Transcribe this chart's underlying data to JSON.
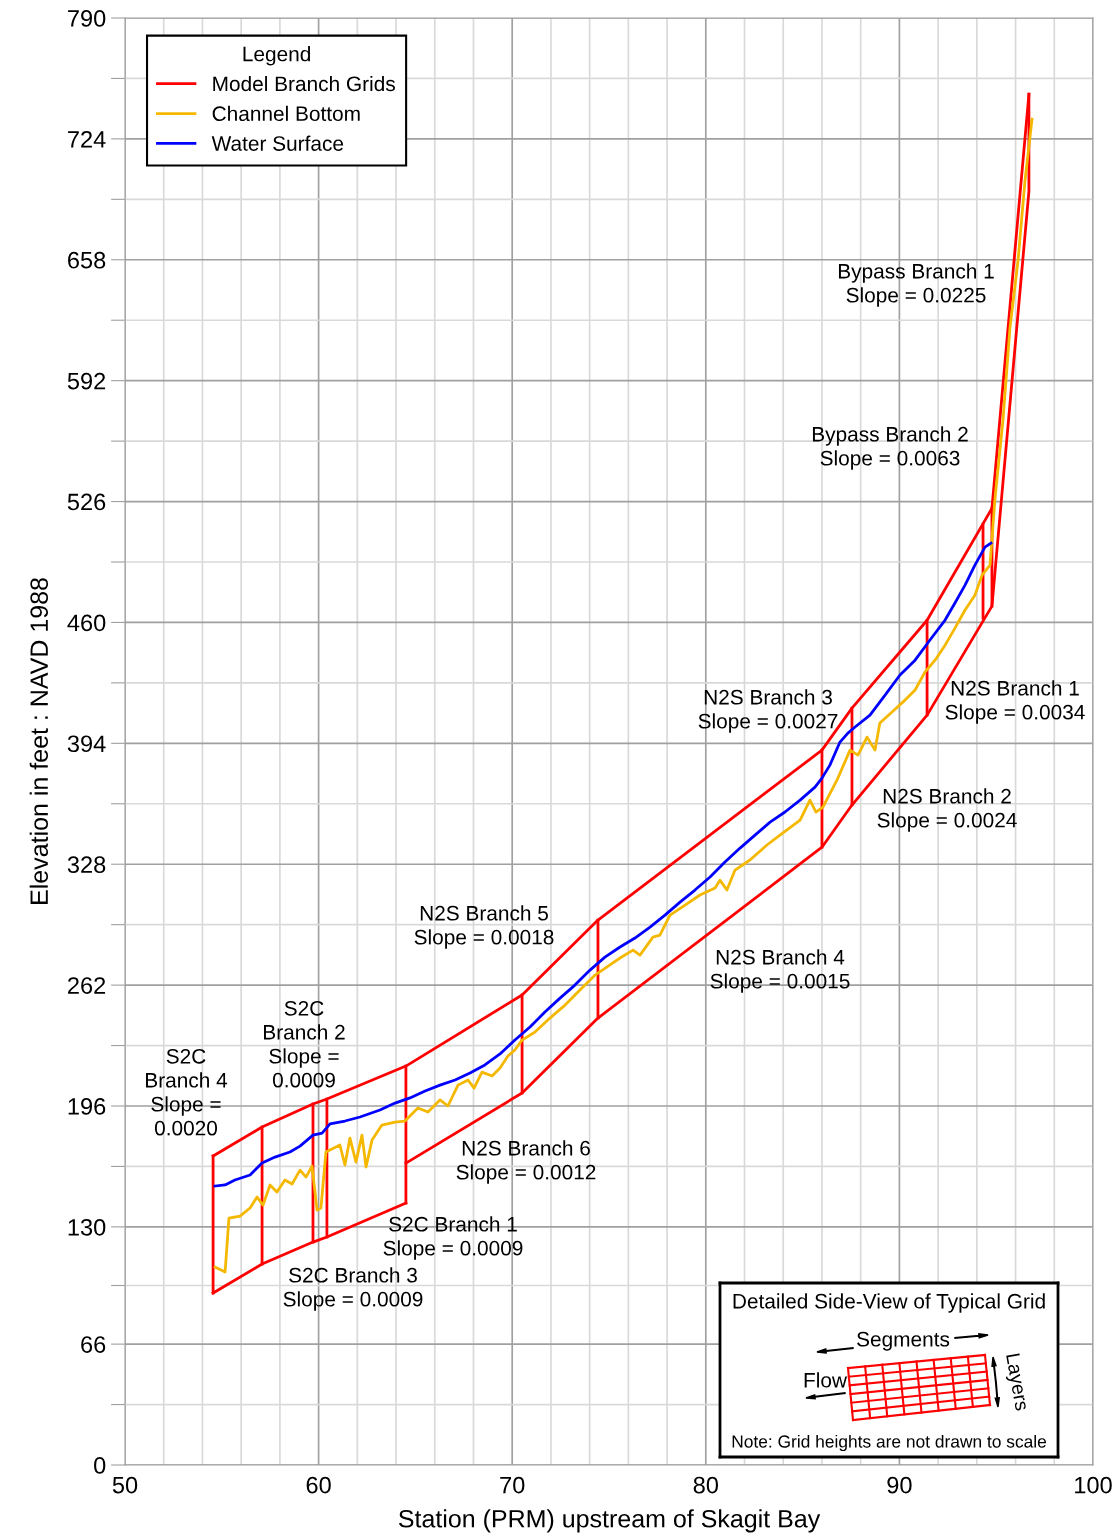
{
  "chart_data": {
    "type": "line",
    "xlabel": "Station (PRM) upstream of Skagit Bay",
    "ylabel": "Elevation in feet : NAVD 1988",
    "legend_title": "Legend",
    "legend": "top left",
    "grid": true,
    "line_style": "solid",
    "marker": "none",
    "xlim": [
      50,
      100
    ],
    "ylim": [
      0,
      790
    ],
    "xticks": [
      50,
      {
        "value": 52,
        "label": null
      },
      {
        "value": 54,
        "label": null
      },
      {
        "value": 56,
        "label": null
      },
      {
        "value": 58,
        "label": null
      },
      60,
      {
        "value": 62,
        "label": null
      },
      {
        "value": 64,
        "label": null
      },
      {
        "value": 66,
        "label": null
      },
      {
        "value": 68,
        "label": null
      },
      70,
      {
        "value": 72,
        "label": null
      },
      {
        "value": 74,
        "label": null
      },
      {
        "value": 76,
        "label": null
      },
      {
        "value": 78,
        "label": null
      },
      80,
      {
        "value": 82,
        "label": null
      },
      {
        "value": 84,
        "label": null
      },
      {
        "value": 86,
        "label": null
      },
      {
        "value": 88,
        "label": null
      },
      90,
      {
        "value": 92,
        "label": null
      },
      {
        "value": 94,
        "label": null
      },
      {
        "value": 96,
        "label": null
      },
      {
        "value": 98,
        "label": null
      },
      100
    ],
    "yticks": [
      0,
      {
        "value": 33,
        "label": null
      },
      66,
      {
        "value": 98,
        "label": null
      },
      130,
      {
        "value": 163,
        "label": null
      },
      196,
      {
        "value": 229,
        "label": null
      },
      262,
      {
        "value": 295,
        "label": null
      },
      328,
      {
        "value": 361,
        "label": null
      },
      394,
      {
        "value": 427,
        "label": null
      },
      460,
      {
        "value": 493,
        "label": null
      },
      526,
      {
        "value": 559,
        "label": null
      },
      592,
      {
        "value": 625,
        "label": null
      },
      658,
      {
        "value": 691,
        "label": null
      },
      724,
      {
        "value": 757,
        "label": null
      },
      790
    ],
    "series": [
      {
        "name": "Model Branch Grids",
        "color": "#ff0000",
        "x": [
          54.55,
          57.08,
          59.71,
          60.43,
          64.51,
          70.51,
          74.43,
          86.0,
          87.55,
          91.43,
          94.78,
          96.69
        ],
        "values": [
          168.7,
          184.5,
          197.1,
          199.8,
          217.8,
          256.6,
          297.5,
          390.3,
          413.2,
          461.2,
          522.3,
          748.4
        ]
      },
      {
        "color": "#ff0000",
        "x": [
          54.55,
          57.08,
          59.71,
          60.43,
          64.51
        ],
        "values": [
          93.9,
          109.7,
          121.7,
          124.5,
          143.0
        ]
      },
      {
        "color": "#ff0000",
        "x": [
          64.51,
          70.51,
          74.43,
          86.0,
          87.55,
          91.43,
          94.78,
          96.69,
          96.69
        ],
        "values": [
          164.8,
          203.1,
          244.0,
          337.3,
          360.3,
          409.4,
          468.9,
          695.4,
          748.4
        ]
      },
      {
        "color": "#ff0000",
        "x": [
          54.55,
          54.55
        ],
        "values": [
          93.9,
          168.7
        ]
      },
      {
        "color": "#ff0000",
        "x": [
          57.08,
          57.08
        ],
        "values": [
          109.7,
          184.5
        ]
      },
      {
        "color": "#ff0000",
        "x": [
          59.71,
          59.71
        ],
        "values": [
          121.7,
          197.1
        ]
      },
      {
        "color": "#ff0000",
        "x": [
          60.43,
          60.43
        ],
        "values": [
          124.5,
          199.8
        ]
      },
      {
        "color": "#ff0000",
        "x": [
          64.51,
          64.51
        ],
        "values": [
          143.0,
          217.8
        ]
      },
      {
        "color": "#ff0000",
        "x": [
          70.51,
          70.51
        ],
        "values": [
          203.1,
          256.6
        ]
      },
      {
        "color": "#ff0000",
        "x": [
          74.43,
          74.43
        ],
        "values": [
          244.0,
          297.5
        ]
      },
      {
        "color": "#ff0000",
        "x": [
          86.0,
          86.0
        ],
        "values": [
          337.3,
          390.3
        ]
      },
      {
        "color": "#ff0000",
        "x": [
          87.55,
          87.55
        ],
        "values": [
          360.3,
          413.2
        ]
      },
      {
        "color": "#ff0000",
        "x": [
          91.43,
          91.43
        ],
        "values": [
          409.4,
          461.2
        ]
      },
      {
        "color": "#ff0000",
        "x": [
          94.32,
          94.32
        ],
        "values": [
          462.3,
          513.6
        ]
      },
      {
        "color": "#ff0000",
        "x": [
          94.78,
          94.78
        ],
        "values": [
          468.9,
          522.3
        ]
      },
      {
        "name": "Channel Bottom",
        "color": "#f5b800",
        "x": [
          54.65,
          55.17,
          55.37,
          55.94,
          56.46,
          56.82,
          57.13,
          57.49,
          57.85,
          58.26,
          58.63,
          59.04,
          59.35,
          59.66,
          59.92,
          60.12,
          60.38,
          61.1,
          61.36,
          61.62,
          61.93,
          62.24,
          62.45,
          62.76,
          63.27,
          63.95,
          64.46,
          65.13,
          65.65,
          66.27,
          66.68,
          67.2,
          67.72,
          68.03,
          68.44,
          68.96,
          69.37,
          69.78,
          70.14,
          70.51,
          71.18,
          71.95,
          72.73,
          73.5,
          74.28,
          75.05,
          75.57,
          76.24,
          76.6,
          77.27,
          77.63,
          78.15,
          78.93,
          79.7,
          80.48,
          80.73,
          81.09,
          81.51,
          82.28,
          83.16,
          83.83,
          84.87,
          85.38,
          85.69,
          86.05,
          86.78,
          87.45,
          87.86,
          88.33,
          88.74,
          88.99,
          89.62,
          90.29,
          90.81,
          91.32,
          91.84,
          92.36,
          92.87,
          93.39,
          93.9,
          94.27,
          94.68,
          94.94,
          95.35,
          95.71,
          96.13,
          96.49,
          96.85
        ],
        "values": [
          108.1,
          105.4,
          134.8,
          135.9,
          140.3,
          146.3,
          141.9,
          152.9,
          149.0,
          155.6,
          153.4,
          161.0,
          157.2,
          163.2,
          139.2,
          140.3,
          170.9,
          174.7,
          163.8,
          178.5,
          165.4,
          180.1,
          162.7,
          177.4,
          185.6,
          187.2,
          187.8,
          194.9,
          192.7,
          199.3,
          196.0,
          207.4,
          210.2,
          205.8,
          214.5,
          212.4,
          216.7,
          223.3,
          226.6,
          232.0,
          236.4,
          244.0,
          251.1,
          259.3,
          267.5,
          273.0,
          276.8,
          281.1,
          278.4,
          288.2,
          289.3,
          300.2,
          305.7,
          311.2,
          315.0,
          319.3,
          313.9,
          324.8,
          330.3,
          338.5,
          343.9,
          352.1,
          363.0,
          356.5,
          359.2,
          374.0,
          390.3,
          387.6,
          397.4,
          390.3,
          405.1,
          411.1,
          417.6,
          423.1,
          432.9,
          439.4,
          447.6,
          456.9,
          466.8,
          474.9,
          485.8,
          491.3,
          527.9,
          570.5,
          620.7,
          657.8,
          701.5,
          734.8
        ]
      },
      {
        "name": "Water Surface",
        "color": "#0000ff",
        "x": [
          54.65,
          55.17,
          55.68,
          56.46,
          57.08,
          57.75,
          58.52,
          59.04,
          59.71,
          60.18,
          60.59,
          61.36,
          62.14,
          63.17,
          63.95,
          64.72,
          65.5,
          66.27,
          67.05,
          67.82,
          68.59,
          69.37,
          70.14,
          70.92,
          71.69,
          72.47,
          73.24,
          74.02,
          74.79,
          75.57,
          76.34,
          77.12,
          77.89,
          78.67,
          79.44,
          80.22,
          80.99,
          81.77,
          82.54,
          83.32,
          84.09,
          84.87,
          85.64,
          86.0,
          86.41,
          86.93,
          87.34,
          87.71,
          88.48,
          89.26,
          90.03,
          90.81,
          91.58,
          92.36,
          92.87,
          93.39,
          93.9,
          94.42,
          94.73
        ],
        "values": [
          152.3,
          152.9,
          155.6,
          158.3,
          164.9,
          168.1,
          170.9,
          174.1,
          180.1,
          181.2,
          186.2,
          187.8,
          190.0,
          193.8,
          197.6,
          200.4,
          204.2,
          207.4,
          210.2,
          214.0,
          218.4,
          224.4,
          232.0,
          239.1,
          247.3,
          254.9,
          262.0,
          270.2,
          277.3,
          282.8,
          287.7,
          293.7,
          300.2,
          307.3,
          313.9,
          321.0,
          329.2,
          336.8,
          343.9,
          351.0,
          356.5,
          363.0,
          370.1,
          375.0,
          382.1,
          394.7,
          399.6,
          402.9,
          409.4,
          420.3,
          431.3,
          439.4,
          450.4,
          461.3,
          470.6,
          480.4,
          491.3,
          501.1,
          503.3
        ]
      }
    ],
    "annotations": [
      "Bypass Branch 1\nSlope = 0.0225",
      "Bypass Branch 2\nSlope = 0.0063",
      "N2S Branch 1\nSlope = 0.0034",
      "N2S Branch 2\nSlope = 0.0024",
      "N2S Branch 3\nSlope = 0.0027",
      "N2S Branch 4\nSlope = 0.0015",
      "N2S Branch 5\nSlope = 0.0018",
      "N2S Branch 6\nSlope = 0.0012",
      "S2C Branch 1\nSlope = 0.0009",
      "S2C\nBranch 2\nSlope =\n0.0009",
      "S2C Branch 3\nSlope = 0.0009",
      "S2C\nBranch 4\nSlope =\n0.0020",
      "Detailed Side-View of Typical Grid",
      "Segments",
      "Flow",
      "Layers",
      "Note: Grid heights are not drawn to scale"
    ]
  }
}
